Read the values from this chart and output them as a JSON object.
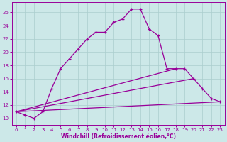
{
  "xlabel": "Windchill (Refroidissement éolien,°C)",
  "bg_color": "#cce8e8",
  "grid_color": "#aacece",
  "line_color": "#990099",
  "xlim": [
    -0.5,
    23.5
  ],
  "ylim": [
    9.0,
    27.5
  ],
  "xticks": [
    0,
    1,
    2,
    3,
    4,
    5,
    6,
    7,
    8,
    9,
    10,
    11,
    12,
    13,
    14,
    15,
    16,
    17,
    18,
    19,
    20,
    21,
    22,
    23
  ],
  "yticks": [
    10,
    12,
    14,
    16,
    18,
    20,
    22,
    24,
    26
  ],
  "curve_x": [
    0,
    1,
    2,
    3,
    4,
    5,
    6,
    7,
    8,
    9,
    10,
    11,
    12,
    13,
    14,
    15,
    16,
    17,
    18,
    19,
    20,
    21,
    22,
    23
  ],
  "curve_y": [
    11.0,
    10.5,
    10.0,
    11.0,
    14.5,
    17.5,
    19.0,
    20.5,
    22.0,
    23.0,
    23.0,
    24.5,
    25.0,
    26.5,
    26.5,
    23.5,
    22.5,
    17.5,
    17.5,
    17.5,
    16.0,
    14.5,
    13.0,
    12.5
  ],
  "line1_x": [
    0,
    18
  ],
  "line1_y": [
    11.0,
    17.5
  ],
  "line2_x": [
    0,
    20
  ],
  "line2_y": [
    11.0,
    16.0
  ],
  "line3_x": [
    0,
    23
  ],
  "line3_y": [
    11.0,
    12.5
  ]
}
